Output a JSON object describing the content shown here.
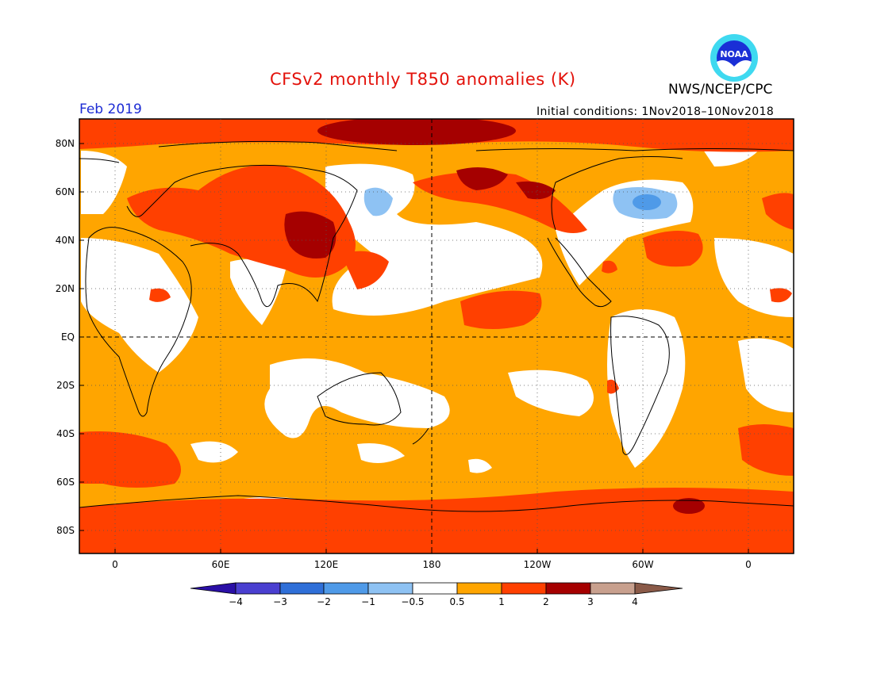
{
  "header": {
    "title": "CFSv2 monthly T850 anomalies (K)",
    "org": "NWS/NCEP/CPC",
    "period": "Feb 2019",
    "initial_conditions": "Initial conditions: 1Nov2018–10Nov2018",
    "logo_text": "NOAA"
  },
  "map": {
    "lat_labels": [
      "80N",
      "60N",
      "40N",
      "20N",
      "EQ",
      "20S",
      "40S",
      "60S",
      "80S"
    ],
    "lon_labels": [
      "0",
      "60E",
      "120E",
      "180",
      "120W",
      "60W",
      "0"
    ]
  },
  "colorbar": {
    "labels": [
      "−4",
      "−3",
      "−2",
      "−1",
      "−0.5",
      "0.5",
      "1",
      "2",
      "3",
      "4"
    ],
    "colors": [
      "#2a0fa6",
      "#4a3fd0",
      "#2f6fd8",
      "#4f9ae8",
      "#8ec2f3",
      "#ffffff",
      "#ffa500",
      "#ff4000",
      "#a50000",
      "#c8a08e",
      "#8a5a48"
    ]
  }
}
